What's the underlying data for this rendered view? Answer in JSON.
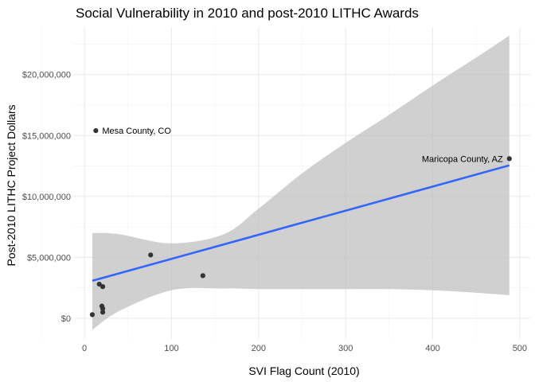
{
  "chart_data": {
    "type": "scatter",
    "title": "Social Vulnerability in 2010 and post-2010 LITHC Awards",
    "xlabel": "SVI Flag Count (2010)",
    "ylabel": "Post-2010 LITHC Project Dollars",
    "xlim": [
      -12,
      512
    ],
    "ylim": [
      -1700000,
      23900000
    ],
    "x_ticks": [
      0,
      100,
      200,
      300,
      400,
      500
    ],
    "x_tick_labels": [
      "0",
      "100",
      "200",
      "300",
      "400",
      "500"
    ],
    "y_ticks": [
      0,
      5000000,
      10000000,
      15000000,
      20000000
    ],
    "y_tick_labels": [
      "$0",
      "$5,000,000",
      "$10,000,000",
      "$15,000,000",
      "$20,000,000"
    ],
    "grid": true,
    "point_color": "#333333",
    "fit_color": "#3366FF",
    "band_color": "#BEBEBE",
    "points": [
      {
        "x": 13,
        "y": 15400000
      },
      {
        "x": 488,
        "y": 13100000
      },
      {
        "x": 76,
        "y": 5200000
      },
      {
        "x": 136,
        "y": 3500000
      },
      {
        "x": 17,
        "y": 2800000
      },
      {
        "x": 21,
        "y": 2600000
      },
      {
        "x": 20,
        "y": 1000000
      },
      {
        "x": 21,
        "y": 800000
      },
      {
        "x": 21,
        "y": 500000
      },
      {
        "x": 9,
        "y": 300000
      }
    ],
    "fit_line": {
      "x": [
        9,
        488
      ],
      "y": [
        3080000,
        12550000
      ]
    },
    "confidence_band": {
      "x": [
        9,
        40,
        100,
        160,
        200,
        250,
        300,
        350,
        400,
        450,
        488
      ],
      "lower": [
        -950000,
        600000,
        2300000,
        2450000,
        2400000,
        2400000,
        2400000,
        2400000,
        2300000,
        2100000,
        1900000
      ],
      "upper": [
        7000000,
        6900000,
        6150000,
        6900000,
        9000000,
        11900000,
        14400000,
        16700000,
        19100000,
        21400000,
        23200000
      ]
    },
    "annotations": [
      {
        "text": "Mesa County, CO",
        "x": 13,
        "y": 15400000,
        "side": "right"
      },
      {
        "text": "Maricopa County, AZ",
        "x": 488,
        "y": 13100000,
        "side": "left"
      }
    ]
  }
}
